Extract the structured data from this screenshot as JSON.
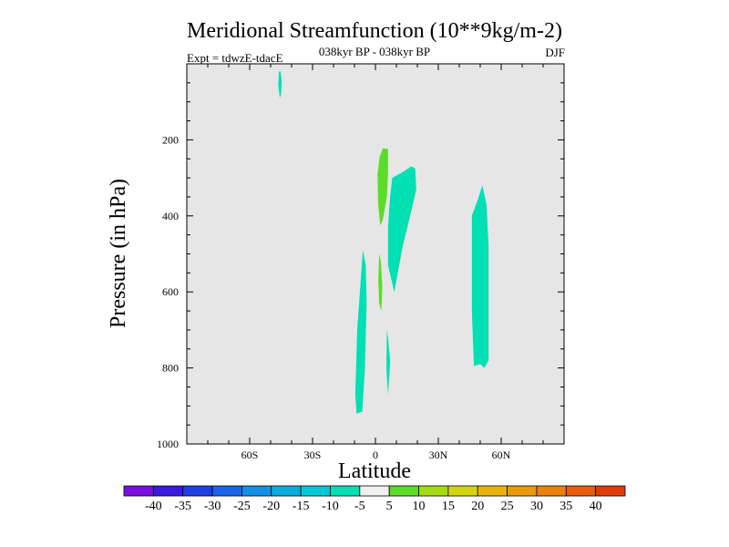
{
  "chart_data": {
    "type": "contour-map",
    "title": "Meridional Streamfunction (10**9kg/m-2)",
    "subtitle": "038kyr BP - 038kyr BP",
    "experiment_label": "Expt = tdwzE-tdacE",
    "season_label": "DJF",
    "xlabel": "Latitude",
    "ylabel": "Pressure (in hPa)",
    "x_range": [
      -90,
      90
    ],
    "y_range": [
      1000,
      0
    ],
    "x_ticks": [
      {
        "value": -60,
        "label": "60S"
      },
      {
        "value": -30,
        "label": "30S"
      },
      {
        "value": 0,
        "label": "0"
      },
      {
        "value": 30,
        "label": "30N"
      },
      {
        "value": 60,
        "label": "60N"
      }
    ],
    "y_ticks": [
      {
        "value": 200,
        "label": "200"
      },
      {
        "value": 400,
        "label": "400"
      },
      {
        "value": 600,
        "label": "600"
      },
      {
        "value": 800,
        "label": "800"
      },
      {
        "value": 1000,
        "label": "1000"
      }
    ],
    "background_color": "#e6e6e6",
    "regions": [
      {
        "name": "neg-sliver-south",
        "level": "-10 to -5",
        "color": "#00e0b4",
        "points": [
          [
            -46,
            20
          ],
          [
            -45.3,
            20
          ],
          [
            -44.7,
            45
          ],
          [
            -45,
            80
          ],
          [
            -45.6,
            90
          ],
          [
            -46.4,
            55
          ]
        ]
      },
      {
        "name": "pos-upper-eq",
        "level": "5 to 10",
        "color": "#5cdc28",
        "points": [
          [
            1,
            290
          ],
          [
            2,
            245
          ],
          [
            3.5,
            222
          ],
          [
            6,
            224
          ],
          [
            6,
            290
          ],
          [
            5.5,
            350
          ],
          [
            3.5,
            410
          ],
          [
            2.3,
            425
          ],
          [
            1.3,
            370
          ]
        ]
      },
      {
        "name": "neg-upper-nh",
        "level": "-10 to -5",
        "color": "#00e0b4",
        "points": [
          [
            8,
            300
          ],
          [
            13,
            285
          ],
          [
            17,
            270
          ],
          [
            19,
            275
          ],
          [
            19.5,
            330
          ],
          [
            17,
            390
          ],
          [
            13,
            480
          ],
          [
            9,
            600
          ],
          [
            6,
            530
          ],
          [
            6,
            430
          ],
          [
            7,
            350
          ]
        ]
      },
      {
        "name": "pos-mid-eq",
        "level": "5 to 10",
        "color": "#5cdc28",
        "points": [
          [
            1.8,
            500
          ],
          [
            2.6,
            520
          ],
          [
            3.3,
            590
          ],
          [
            2.8,
            650
          ],
          [
            1.8,
            630
          ],
          [
            1.4,
            570
          ]
        ]
      },
      {
        "name": "neg-lower-sh",
        "level": "-10 to -5",
        "color": "#00e0b4",
        "points": [
          [
            -6,
            490
          ],
          [
            -4.6,
            530
          ],
          [
            -4.2,
            630
          ],
          [
            -5,
            800
          ],
          [
            -6.3,
            915
          ],
          [
            -9,
            920
          ],
          [
            -9.6,
            870
          ],
          [
            -8.7,
            700
          ]
        ]
      },
      {
        "name": "neg-lower-eq",
        "level": "-10 to -5",
        "color": "#00e0b4",
        "points": [
          [
            6,
            720
          ],
          [
            7,
            780
          ],
          [
            6.8,
            810
          ],
          [
            6,
            870
          ],
          [
            5.2,
            800
          ],
          [
            5.5,
            700
          ]
        ]
      },
      {
        "name": "neg-nh-midlat",
        "level": "-10 to -5",
        "color": "#00e0b4",
        "points": [
          [
            46,
            400
          ],
          [
            49,
            355
          ],
          [
            51,
            320
          ],
          [
            53,
            370
          ],
          [
            54,
            480
          ],
          [
            54,
            650
          ],
          [
            54,
            780
          ],
          [
            52,
            800
          ],
          [
            50,
            790
          ],
          [
            47,
            795
          ],
          [
            46,
            650
          ]
        ]
      }
    ],
    "colorbar": {
      "colors": [
        "#7a10e0",
        "#3a1ae0",
        "#1f3ee6",
        "#1a64ea",
        "#1290e6",
        "#0aacdc",
        "#00c8d8",
        "#00e0b4",
        "#f0f0f0",
        "#5cdc28",
        "#a4dc10",
        "#d4d40a",
        "#e8b40a",
        "#e89a0a",
        "#e8820a",
        "#e85c0a",
        "#e03c0a"
      ],
      "labels": [
        "-40",
        "-35",
        "-30",
        "-25",
        "-20",
        "-15",
        "-10",
        "-5",
        "5",
        "10",
        "15",
        "20",
        "25",
        "30",
        "35",
        "40"
      ]
    }
  }
}
